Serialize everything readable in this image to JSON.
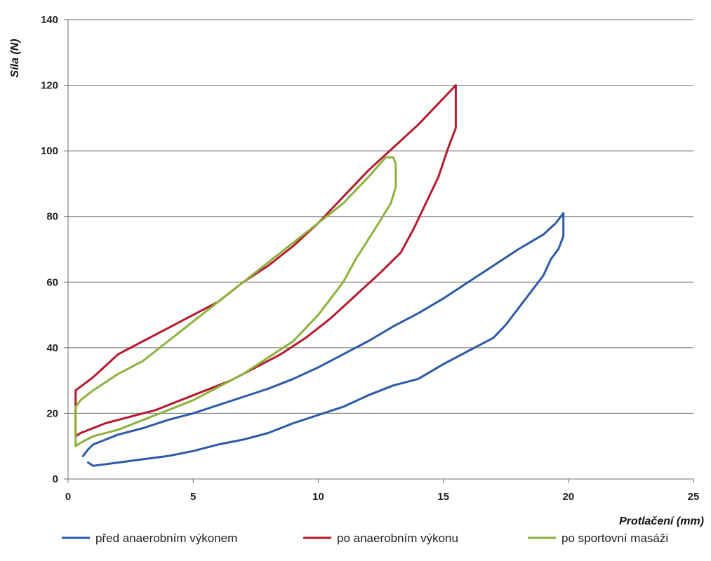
{
  "chart_data": {
    "type": "line",
    "xlabel": "Protlačení (mm)",
    "ylabel": "Síla (N)",
    "xlim": [
      0,
      25
    ],
    "ylim": [
      0,
      140
    ],
    "xticks": [
      "0",
      "5",
      "10",
      "15",
      "20",
      "25"
    ],
    "yticks": [
      "0",
      "20",
      "40",
      "60",
      "80",
      "100",
      "120",
      "140"
    ],
    "grid": "horizontal",
    "legend_position": "bottom",
    "series": [
      {
        "name": "před anaerobním výkonem",
        "color": "#2a5aa8",
        "x": [
          0.6,
          0.8,
          1,
          1.5,
          2,
          3,
          4,
          5,
          6,
          7,
          8,
          9,
          10,
          11,
          12,
          13,
          14,
          15,
          16,
          17,
          18,
          19,
          19.5,
          19.8,
          19.8,
          19.6,
          19.3,
          19,
          18.5,
          18,
          17.5,
          17,
          16,
          15,
          14,
          13,
          12,
          11,
          10,
          9,
          8,
          7,
          6,
          5,
          4,
          3,
          2,
          1,
          0.8
        ],
        "y": [
          7,
          9,
          10.5,
          12,
          13.5,
          15.5,
          18,
          20,
          22.5,
          25,
          27.5,
          30.5,
          34,
          38,
          42,
          46.5,
          50.5,
          55,
          60,
          65,
          70,
          74.5,
          78,
          81,
          74,
          70,
          67,
          62,
          57,
          52,
          47,
          43,
          39,
          35,
          30.5,
          28.5,
          25.5,
          22,
          19.5,
          17,
          14,
          12,
          10.5,
          8.5,
          7,
          6,
          5,
          4,
          5
        ]
      },
      {
        "name": "po anaerobním výkonu",
        "color": "#b8182e",
        "x": [
          0.3,
          0.3,
          1,
          2,
          3,
          4,
          5,
          6,
          7,
          8,
          9,
          10,
          11,
          12,
          13,
          14,
          15,
          15.5,
          15.5,
          15.2,
          14.8,
          14.3,
          13.8,
          13.3,
          12.5,
          11.5,
          10.5,
          9.5,
          8.5,
          7.5,
          6.5,
          5.5,
          4.5,
          3.5,
          2.5,
          1.5,
          0.5,
          0.3,
          0.3
        ],
        "y": [
          14,
          27,
          31,
          38,
          42,
          46,
          50,
          54,
          60,
          65,
          71,
          78,
          86,
          94,
          101,
          108,
          116,
          120,
          107,
          101,
          92,
          84,
          76,
          69,
          63,
          56,
          49,
          43,
          38,
          34,
          30,
          27,
          24,
          21,
          19,
          17,
          14,
          13,
          14
        ]
      },
      {
        "name": "po sportovní masáži",
        "color": "#8bb23a",
        "x": [
          0.3,
          0.3,
          0.5,
          1,
          2,
          3,
          4,
          5,
          6,
          7,
          8,
          9,
          10,
          11,
          12,
          12.7,
          13,
          13.1,
          13.1,
          12.9,
          12.5,
          12,
          11.5,
          11,
          10.5,
          10,
          9.5,
          9,
          8,
          7,
          6,
          5,
          4,
          3,
          2,
          1,
          0.5,
          0.3
        ],
        "y": [
          10,
          22,
          24,
          27,
          32,
          36,
          42,
          48,
          54,
          60,
          66,
          72,
          78,
          84,
          92,
          98,
          98,
          96,
          89,
          84,
          79,
          73,
          67,
          60,
          55,
          50,
          46,
          42,
          37,
          32,
          28,
          24,
          21,
          18,
          15,
          13,
          11,
          10
        ]
      }
    ]
  }
}
